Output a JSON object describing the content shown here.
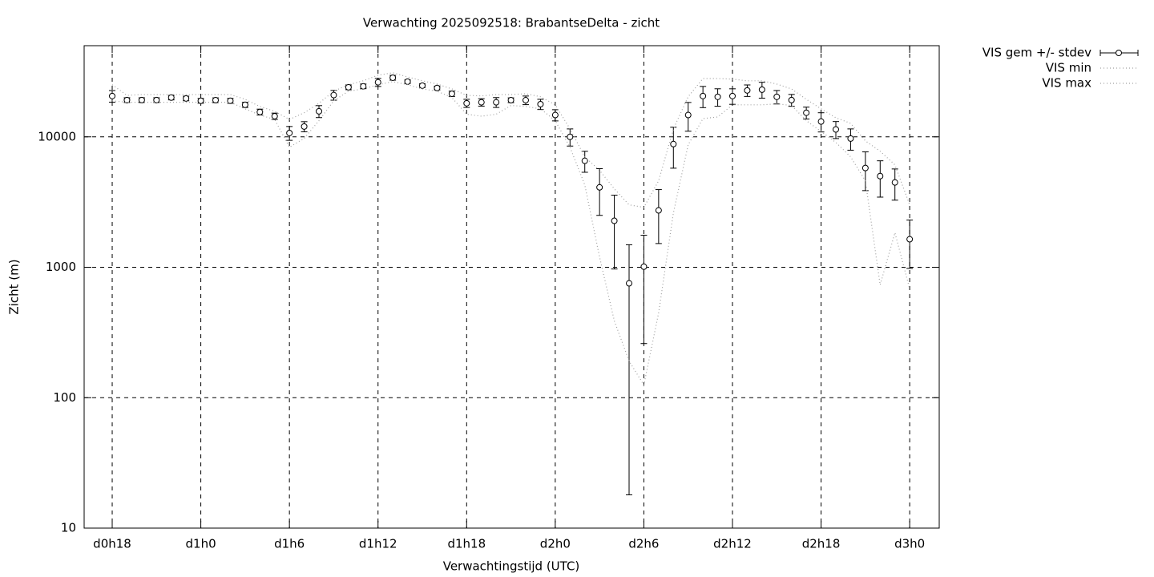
{
  "chart_data": {
    "type": "errorbar",
    "title": "Verwachting 2025092518: BrabantseDelta - zicht",
    "x_label": "Verwachtingstijd (UTC)",
    "y_label": "Zicht (m)",
    "log_y": true,
    "grid": true,
    "legend_position": "outside-top-right",
    "x": [
      18,
      19,
      20,
      21,
      22,
      23,
      24,
      25,
      26,
      27,
      28,
      29,
      30,
      31,
      32,
      33,
      34,
      35,
      36,
      37,
      38,
      39,
      40,
      41,
      42,
      43,
      44,
      45,
      46,
      47,
      48,
      49,
      50,
      51,
      52,
      53,
      54,
      55,
      56,
      57,
      58,
      59,
      60,
      61,
      62,
      63,
      64,
      65,
      66,
      67,
      68,
      69,
      70,
      71,
      72
    ],
    "xlim": [
      16.1,
      74
    ],
    "xticks": [
      {
        "value": 18,
        "label": "d0h18"
      },
      {
        "value": 24,
        "label": "d1h0"
      },
      {
        "value": 30,
        "label": "d1h6"
      },
      {
        "value": 36,
        "label": "d1h12"
      },
      {
        "value": 42,
        "label": "d1h18"
      },
      {
        "value": 48,
        "label": "d2h0"
      },
      {
        "value": 54,
        "label": "d2h6"
      },
      {
        "value": 60,
        "label": "d2h12"
      },
      {
        "value": 66,
        "label": "d2h18"
      },
      {
        "value": 72,
        "label": "d3h0"
      }
    ],
    "ylim": [
      10,
      50000
    ],
    "yticks": [
      10,
      100,
      1000,
      10000
    ],
    "series": [
      {
        "name": "VIS gem +/- stdev",
        "color": "#000000",
        "style": "errorbar",
        "values": [
          20550,
          19140,
          19140,
          19140,
          20000,
          19700,
          18900,
          19100,
          18900,
          17600,
          15500,
          14400,
          10700,
          12000,
          15700,
          20900,
          24000,
          24400,
          26200,
          28400,
          26500,
          24700,
          23700,
          21400,
          18100,
          18400,
          18400,
          19100,
          19100,
          17800,
          14700,
          10000,
          6550,
          4100,
          2270,
          753,
          1010,
          2730,
          8800,
          14700,
          20550,
          20260,
          20550,
          22700,
          23000,
          20260,
          19140,
          15300,
          13100,
          11400,
          9700,
          5770,
          5000,
          4470,
          1640
        ],
        "errors": [
          2100,
          800,
          800,
          800,
          800,
          800,
          800,
          800,
          800,
          800,
          800,
          800,
          1300,
          1070,
          1650,
          1800,
          1000,
          1000,
          1850,
          1200,
          800,
          800,
          800,
          1000,
          1300,
          1200,
          1600,
          800,
          1450,
          1600,
          1450,
          1500,
          1200,
          1600,
          1300,
          735,
          750,
          1210,
          3050,
          3650,
          3800,
          3100,
          2800,
          2300,
          3200,
          2400,
          2000,
          1600,
          2200,
          1700,
          1800,
          1900,
          1550,
          1200,
          660
        ]
      },
      {
        "name": "VIS min",
        "color": "#a0a0a0",
        "style": "dotted",
        "values": [
          18900,
          18400,
          18400,
          18400,
          18400,
          18400,
          18400,
          18400,
          18400,
          16400,
          14700,
          13600,
          8320,
          9730,
          13300,
          18900,
          22400,
          23300,
          25100,
          26500,
          25100,
          23300,
          22400,
          20000,
          14900,
          14400,
          14900,
          17400,
          17100,
          16400,
          13300,
          8320,
          4280,
          1200,
          388,
          191,
          125,
          447,
          2610,
          8690,
          13800,
          14200,
          17600,
          17600,
          17600,
          17900,
          17400,
          13300,
          11000,
          9060,
          7030,
          4600,
          733,
          1840,
          683
        ]
      },
      {
        "name": "VIS max",
        "color": "#a0a0a0",
        "style": "dotted",
        "values": [
          25100,
          20800,
          21100,
          21100,
          21100,
          21100,
          21100,
          21100,
          21100,
          19400,
          17100,
          15700,
          13600,
          15300,
          18100,
          22400,
          25100,
          26900,
          29700,
          31000,
          28800,
          26900,
          25400,
          23300,
          20800,
          20600,
          21100,
          21100,
          21400,
          20300,
          17600,
          11500,
          7030,
          5530,
          3990,
          3010,
          2880,
          4600,
          11500,
          20300,
          28000,
          28000,
          27700,
          26900,
          26900,
          25400,
          23300,
          19400,
          16400,
          14000,
          12700,
          9310,
          7760,
          6100,
          3010
        ]
      }
    ]
  }
}
